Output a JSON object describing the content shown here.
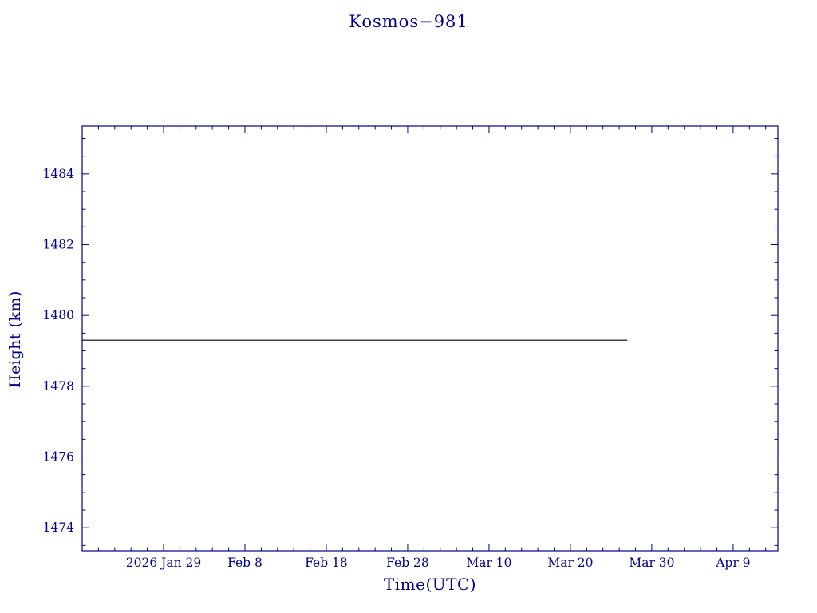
{
  "chart_data": {
    "type": "line",
    "title": "Kosmos−981",
    "axis_color": "#00008B",
    "background_color": "#ffffff",
    "grid": false,
    "legend": "none",
    "x_axis": {
      "label": "Time(UTC)",
      "unit": "days since plot start (2026 Jan 19)",
      "range": [
        0,
        85.5
      ],
      "minor_step": 2,
      "major_ticks": [
        {
          "value": 10,
          "label": "2026 Jan 29"
        },
        {
          "value": 20,
          "label": "Feb 8"
        },
        {
          "value": 30,
          "label": "Feb 18"
        },
        {
          "value": 40,
          "label": "Feb 28"
        },
        {
          "value": 50,
          "label": "Mar 10"
        },
        {
          "value": 60,
          "label": "Mar 20"
        },
        {
          "value": 70,
          "label": "Mar 30"
        },
        {
          "value": 80,
          "label": "Apr 9"
        }
      ]
    },
    "y_axis": {
      "label": "Height (km)",
      "range": [
        1473.35,
        1485.35
      ],
      "minor_step": 0.5,
      "major_ticks": [
        {
          "value": 1474,
          "label": "1474"
        },
        {
          "value": 1476,
          "label": "1476"
        },
        {
          "value": 1478,
          "label": "1478"
        },
        {
          "value": 1480,
          "label": "1480"
        },
        {
          "value": 1482,
          "label": "1482"
        },
        {
          "value": 1484,
          "label": "1484"
        }
      ]
    },
    "series": [
      {
        "name": "height-km",
        "color": "#000000",
        "points": [
          [
            0,
            1479.3
          ],
          [
            67,
            1479.3
          ]
        ]
      }
    ]
  }
}
